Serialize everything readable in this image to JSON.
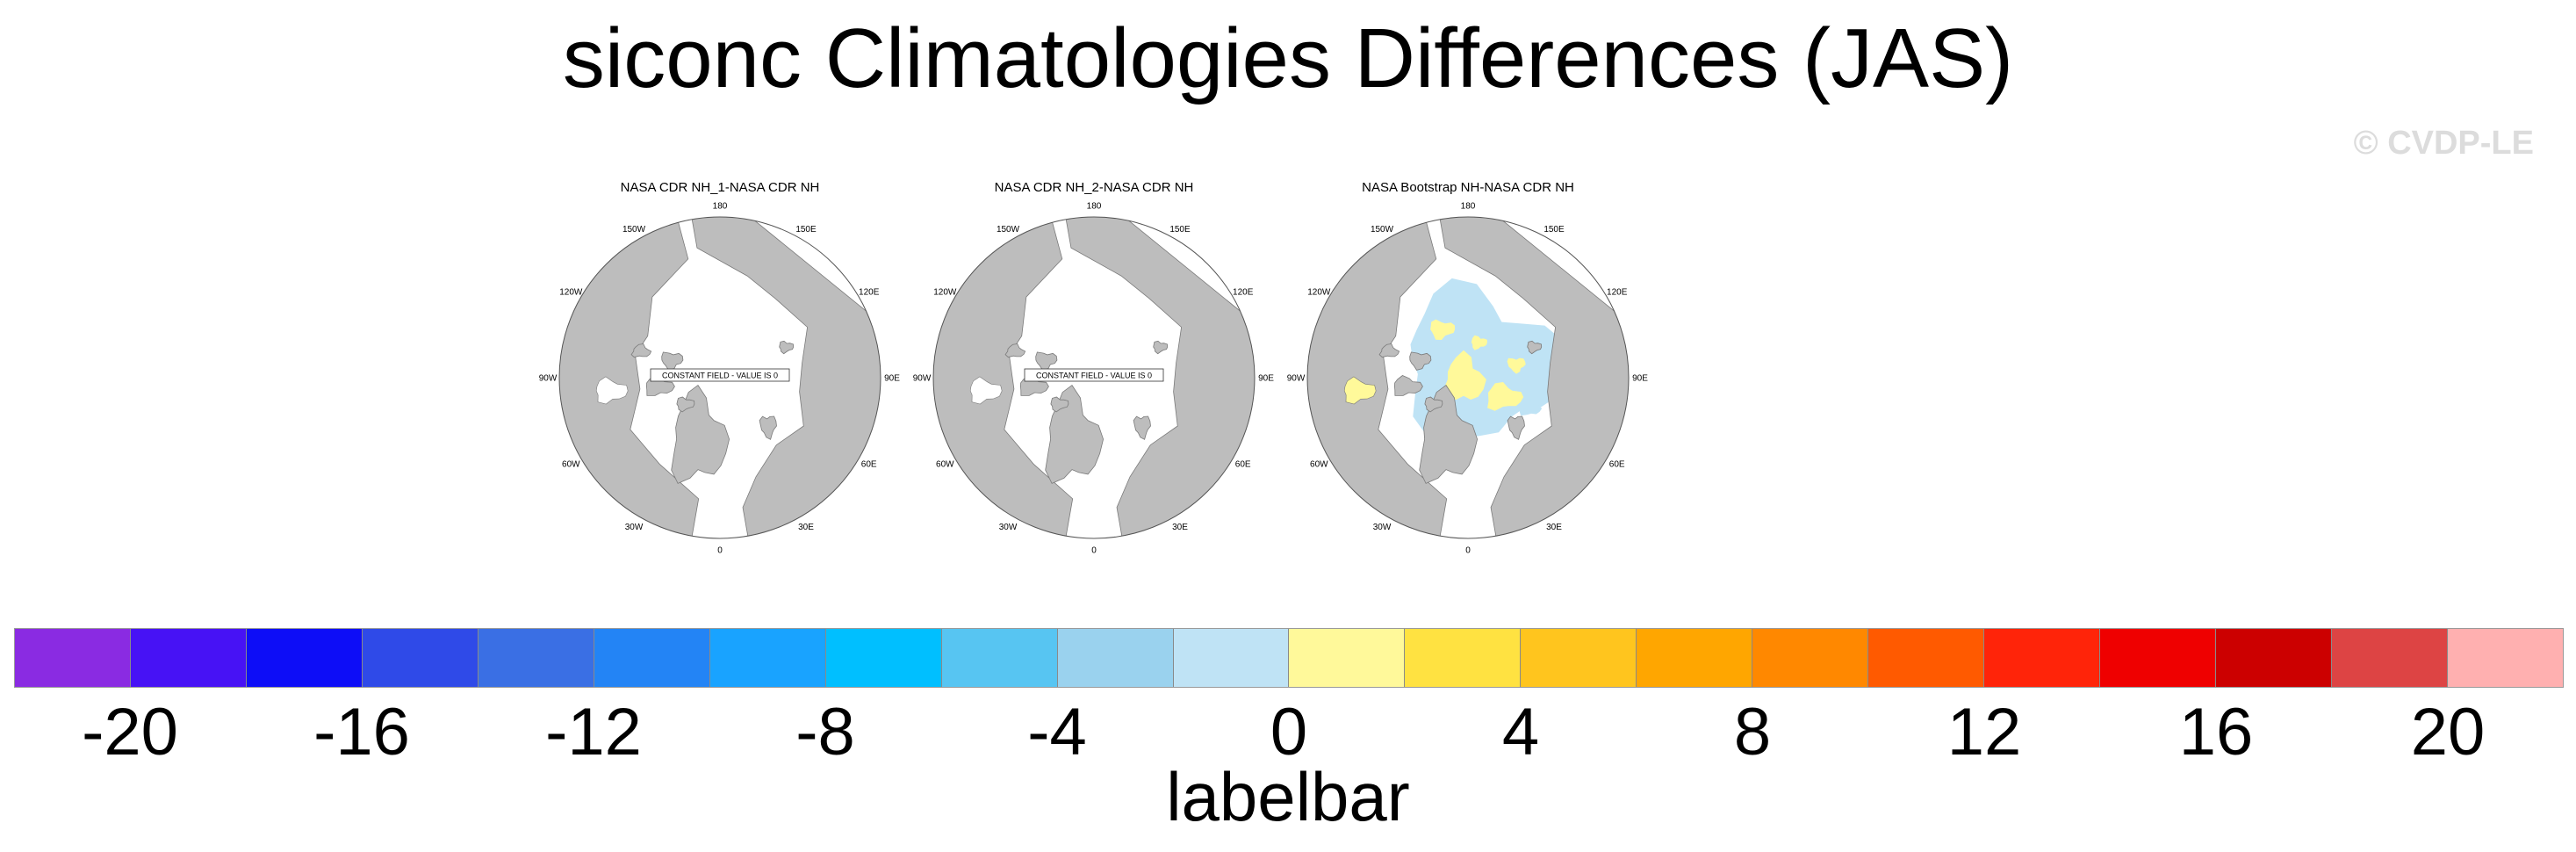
{
  "title": "siconc Climatologies Differences (JAS)",
  "watermark": "© CVDP-LE",
  "panels": [
    {
      "title": "NASA CDR NH_1-NASA CDR NH",
      "note": "CONSTANT FIELD - VALUE IS 0",
      "anomaly": "none"
    },
    {
      "title": "NASA CDR NH_2-NASA CDR NH",
      "note": "CONSTANT FIELD - VALUE IS 0",
      "anomaly": "none"
    },
    {
      "title": "NASA Bootstrap NH-NASA CDR NH",
      "note": "",
      "anomaly": "mixed"
    }
  ],
  "longitude_labels": [
    "180",
    "150E",
    "120E",
    "90E",
    "60E",
    "30E",
    "0",
    "30W",
    "60W",
    "90W",
    "120W",
    "150W"
  ],
  "colorbar": {
    "colors": [
      "#8a2be2",
      "#4712f5",
      "#0d0df7",
      "#2f4ae8",
      "#3a6fe4",
      "#2384f5",
      "#19a3ff",
      "#00bfff",
      "#57c5f2",
      "#9ad2ee",
      "#bfe3f5",
      "#fff99a",
      "#ffe241",
      "#ffc51e",
      "#ffa600",
      "#ff8800",
      "#ff5a00",
      "#ff2409",
      "#ef0000",
      "#cc0000",
      "#dd4444",
      "#ffb0b0"
    ],
    "tick_labels": [
      "-20",
      "-16",
      "-12",
      "-8",
      "-4",
      "0",
      "4",
      "8",
      "12",
      "16",
      "20"
    ],
    "label": "labelbar"
  }
}
